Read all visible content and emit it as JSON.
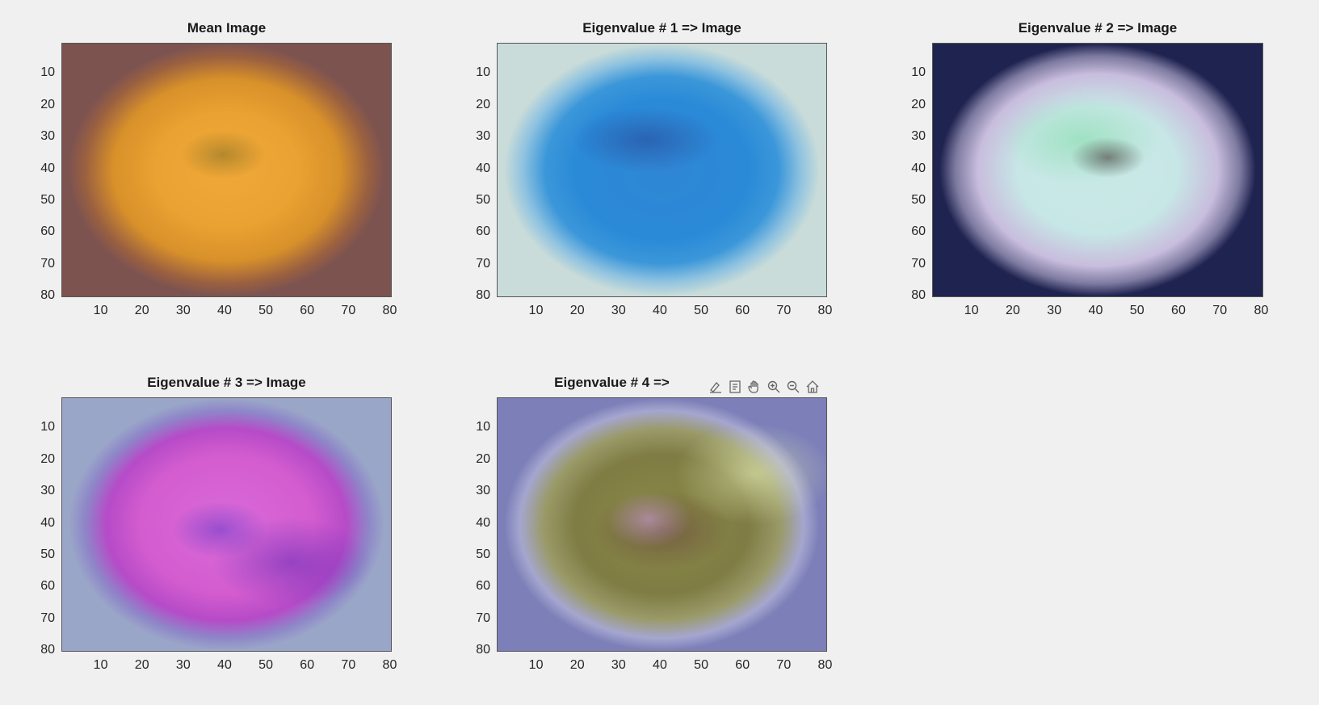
{
  "axes": [
    {
      "title": "Mean Image",
      "image": "orange mean image",
      "yticks": [
        "10",
        "20",
        "30",
        "40",
        "50",
        "60",
        "70",
        "80"
      ],
      "xticks": [
        "10",
        "20",
        "30",
        "40",
        "50",
        "60",
        "70",
        "80"
      ]
    },
    {
      "title": "Eigenvalue # 1 => Image",
      "image": "eigen image 1 (blue)",
      "yticks": [
        "10",
        "20",
        "30",
        "40",
        "50",
        "60",
        "70",
        "80"
      ],
      "xticks": [
        "10",
        "20",
        "30",
        "40",
        "50",
        "60",
        "70",
        "80"
      ]
    },
    {
      "title": "Eigenvalue # 2 => Image",
      "image": "eigen image 2 (pale cyan)",
      "yticks": [
        "10",
        "20",
        "30",
        "40",
        "50",
        "60",
        "70",
        "80"
      ],
      "xticks": [
        "10",
        "20",
        "30",
        "40",
        "50",
        "60",
        "70",
        "80"
      ]
    },
    {
      "title": "Eigenvalue # 3 => Image",
      "image": "eigen image 3 (magenta)",
      "yticks": [
        "10",
        "20",
        "30",
        "40",
        "50",
        "60",
        "70",
        "80"
      ],
      "xticks": [
        "10",
        "20",
        "30",
        "40",
        "50",
        "60",
        "70",
        "80"
      ]
    },
    {
      "title": "Eigenvalue # 4 =>",
      "image": "eigen image 4 (olive/lavender)",
      "yticks": [
        "10",
        "20",
        "30",
        "40",
        "50",
        "60",
        "70",
        "80"
      ],
      "xticks": [
        "10",
        "20",
        "30",
        "40",
        "50",
        "60",
        "70",
        "80"
      ]
    }
  ],
  "axes_toolbar": {
    "tools": [
      "brush-icon",
      "data-tips-icon",
      "pan-icon",
      "zoom-in-icon",
      "zoom-out-icon",
      "home-icon"
    ]
  }
}
